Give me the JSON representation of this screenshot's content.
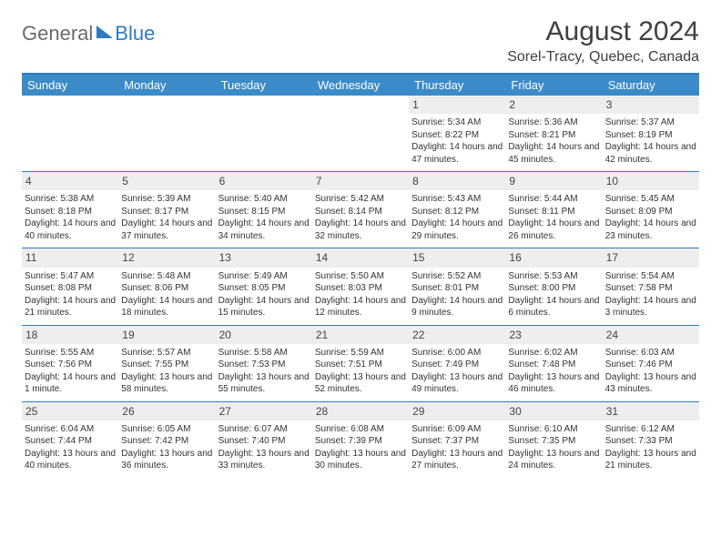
{
  "logo": {
    "text1": "General",
    "text2": "Blue"
  },
  "title": "August 2024",
  "location": "Sorel-Tracy, Quebec, Canada",
  "colors": {
    "header_bar": "#3b8bc9",
    "rule": "#2f7bbf",
    "daynum_bg": "#eeeeee",
    "text": "#333333",
    "logo_grey": "#6b6b6b"
  },
  "dow": [
    "Sunday",
    "Monday",
    "Tuesday",
    "Wednesday",
    "Thursday",
    "Friday",
    "Saturday"
  ],
  "weeks": [
    [
      null,
      null,
      null,
      null,
      {
        "n": "1",
        "sunrise": "5:34 AM",
        "sunset": "8:22 PM",
        "dl": "14 hours and 47 minutes."
      },
      {
        "n": "2",
        "sunrise": "5:36 AM",
        "sunset": "8:21 PM",
        "dl": "14 hours and 45 minutes."
      },
      {
        "n": "3",
        "sunrise": "5:37 AM",
        "sunset": "8:19 PM",
        "dl": "14 hours and 42 minutes."
      }
    ],
    [
      {
        "n": "4",
        "sunrise": "5:38 AM",
        "sunset": "8:18 PM",
        "dl": "14 hours and 40 minutes."
      },
      {
        "n": "5",
        "sunrise": "5:39 AM",
        "sunset": "8:17 PM",
        "dl": "14 hours and 37 minutes."
      },
      {
        "n": "6",
        "sunrise": "5:40 AM",
        "sunset": "8:15 PM",
        "dl": "14 hours and 34 minutes."
      },
      {
        "n": "7",
        "sunrise": "5:42 AM",
        "sunset": "8:14 PM",
        "dl": "14 hours and 32 minutes."
      },
      {
        "n": "8",
        "sunrise": "5:43 AM",
        "sunset": "8:12 PM",
        "dl": "14 hours and 29 minutes."
      },
      {
        "n": "9",
        "sunrise": "5:44 AM",
        "sunset": "8:11 PM",
        "dl": "14 hours and 26 minutes."
      },
      {
        "n": "10",
        "sunrise": "5:45 AM",
        "sunset": "8:09 PM",
        "dl": "14 hours and 23 minutes."
      }
    ],
    [
      {
        "n": "11",
        "sunrise": "5:47 AM",
        "sunset": "8:08 PM",
        "dl": "14 hours and 21 minutes."
      },
      {
        "n": "12",
        "sunrise": "5:48 AM",
        "sunset": "8:06 PM",
        "dl": "14 hours and 18 minutes."
      },
      {
        "n": "13",
        "sunrise": "5:49 AM",
        "sunset": "8:05 PM",
        "dl": "14 hours and 15 minutes."
      },
      {
        "n": "14",
        "sunrise": "5:50 AM",
        "sunset": "8:03 PM",
        "dl": "14 hours and 12 minutes."
      },
      {
        "n": "15",
        "sunrise": "5:52 AM",
        "sunset": "8:01 PM",
        "dl": "14 hours and 9 minutes."
      },
      {
        "n": "16",
        "sunrise": "5:53 AM",
        "sunset": "8:00 PM",
        "dl": "14 hours and 6 minutes."
      },
      {
        "n": "17",
        "sunrise": "5:54 AM",
        "sunset": "7:58 PM",
        "dl": "14 hours and 3 minutes."
      }
    ],
    [
      {
        "n": "18",
        "sunrise": "5:55 AM",
        "sunset": "7:56 PM",
        "dl": "14 hours and 1 minute."
      },
      {
        "n": "19",
        "sunrise": "5:57 AM",
        "sunset": "7:55 PM",
        "dl": "13 hours and 58 minutes."
      },
      {
        "n": "20",
        "sunrise": "5:58 AM",
        "sunset": "7:53 PM",
        "dl": "13 hours and 55 minutes."
      },
      {
        "n": "21",
        "sunrise": "5:59 AM",
        "sunset": "7:51 PM",
        "dl": "13 hours and 52 minutes."
      },
      {
        "n": "22",
        "sunrise": "6:00 AM",
        "sunset": "7:49 PM",
        "dl": "13 hours and 49 minutes."
      },
      {
        "n": "23",
        "sunrise": "6:02 AM",
        "sunset": "7:48 PM",
        "dl": "13 hours and 46 minutes."
      },
      {
        "n": "24",
        "sunrise": "6:03 AM",
        "sunset": "7:46 PM",
        "dl": "13 hours and 43 minutes."
      }
    ],
    [
      {
        "n": "25",
        "sunrise": "6:04 AM",
        "sunset": "7:44 PM",
        "dl": "13 hours and 40 minutes."
      },
      {
        "n": "26",
        "sunrise": "6:05 AM",
        "sunset": "7:42 PM",
        "dl": "13 hours and 36 minutes."
      },
      {
        "n": "27",
        "sunrise": "6:07 AM",
        "sunset": "7:40 PM",
        "dl": "13 hours and 33 minutes."
      },
      {
        "n": "28",
        "sunrise": "6:08 AM",
        "sunset": "7:39 PM",
        "dl": "13 hours and 30 minutes."
      },
      {
        "n": "29",
        "sunrise": "6:09 AM",
        "sunset": "7:37 PM",
        "dl": "13 hours and 27 minutes."
      },
      {
        "n": "30",
        "sunrise": "6:10 AM",
        "sunset": "7:35 PM",
        "dl": "13 hours and 24 minutes."
      },
      {
        "n": "31",
        "sunrise": "6:12 AM",
        "sunset": "7:33 PM",
        "dl": "13 hours and 21 minutes."
      }
    ]
  ],
  "labels": {
    "sunrise": "Sunrise:",
    "sunset": "Sunset:",
    "daylight": "Daylight:"
  }
}
